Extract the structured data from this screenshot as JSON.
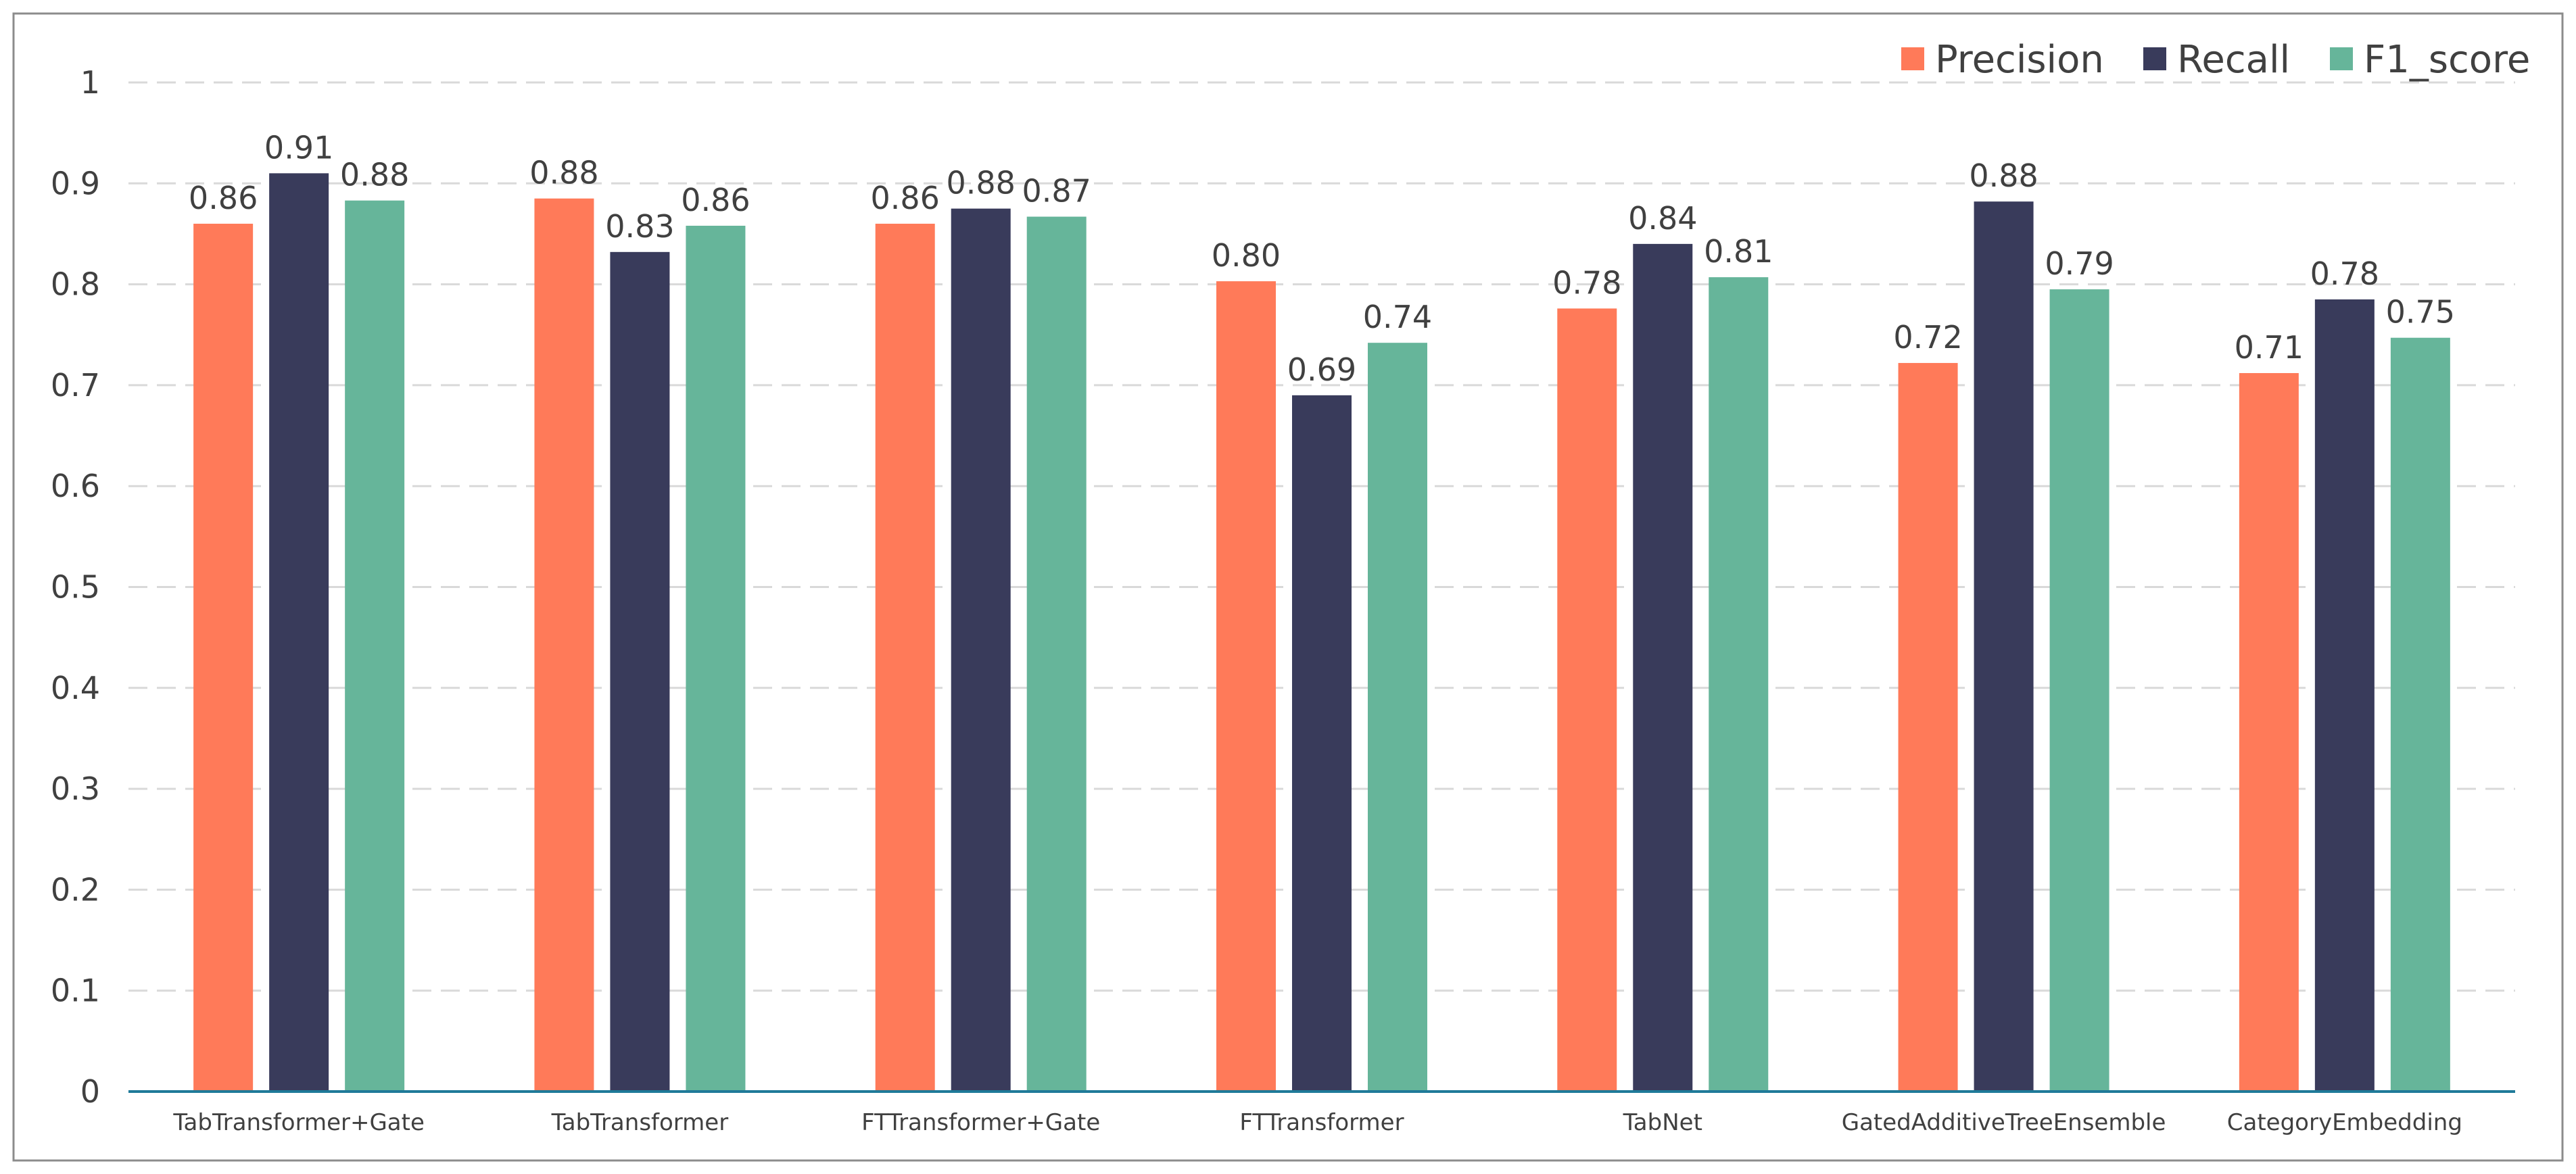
{
  "chart_data": {
    "type": "bar",
    "categories": [
      "TabTransformer+Gate",
      "TabTransformer",
      "FTTransformer+Gate",
      "FTTransformer",
      "TabNet",
      "GatedAdditiveTreeEnsemble",
      "CategoryEmbedding"
    ],
    "series": [
      {
        "name": "Precision",
        "color": "#FF7A59",
        "values": [
          0.86,
          0.885,
          0.86,
          0.803,
          0.776,
          0.722,
          0.712
        ],
        "labels": [
          "0.86",
          "0.88",
          "0.86",
          "0.80",
          "0.78",
          "0.72",
          "0.71"
        ]
      },
      {
        "name": "Recall",
        "color": "#393B5B",
        "values": [
          0.91,
          0.832,
          0.875,
          0.69,
          0.84,
          0.882,
          0.785
        ],
        "labels": [
          "0.91",
          "0.83",
          "0.88",
          "0.69",
          "0.84",
          "0.88",
          "0.78"
        ]
      },
      {
        "name": "F1_score",
        "color": "#66B59A",
        "values": [
          0.883,
          0.858,
          0.867,
          0.742,
          0.807,
          0.795,
          0.747
        ],
        "labels": [
          "0.88",
          "0.86",
          "0.87",
          "0.74",
          "0.81",
          "0.79",
          "0.75"
        ]
      }
    ],
    "yticks": [
      "0",
      "0.1",
      "0.2",
      "0.3",
      "0.4",
      "0.5",
      "0.6",
      "0.7",
      "0.8",
      "0.9",
      "1"
    ],
    "ylim": [
      0,
      1
    ],
    "title": "",
    "xlabel": "",
    "ylabel": "",
    "grid": true,
    "legend_position": "top-right",
    "axis_color": "#1F7A99",
    "grid_color": "#D9D9D9",
    "frame_color": "#8C8C8C"
  }
}
